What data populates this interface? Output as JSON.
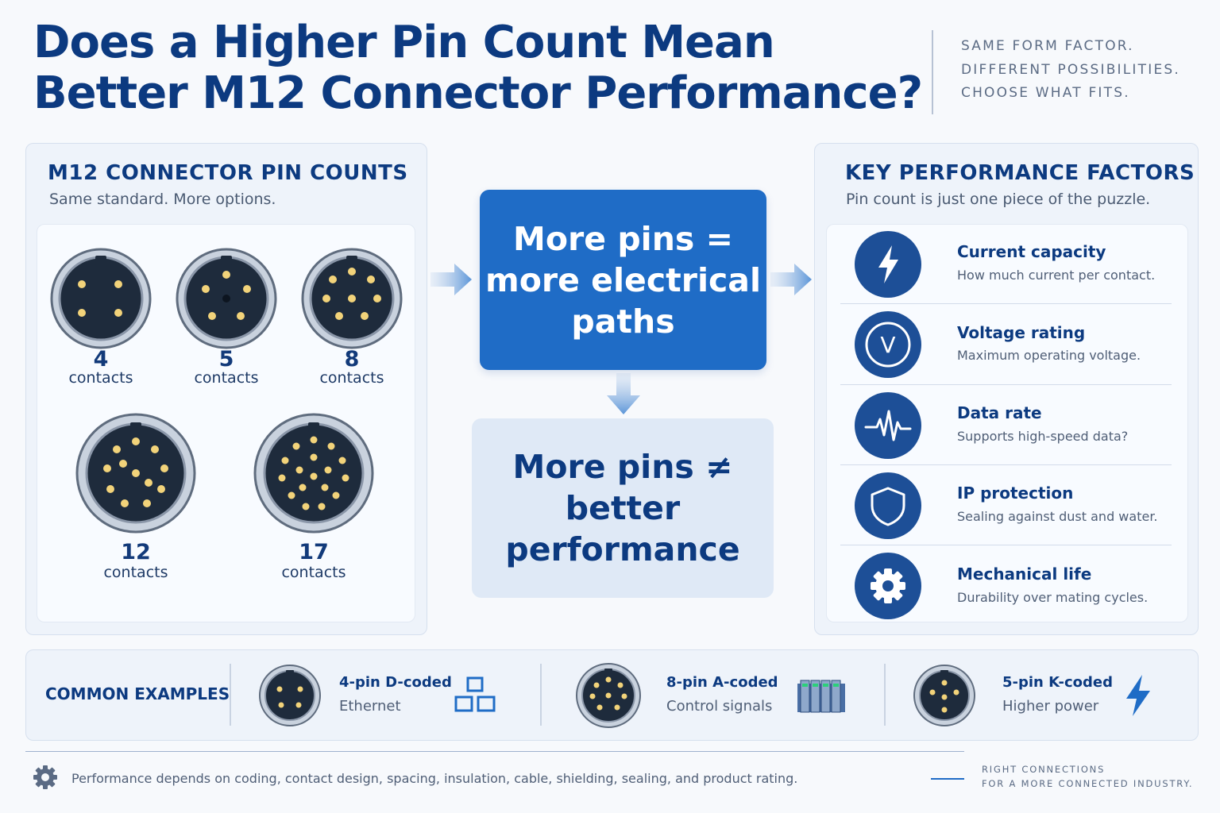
{
  "header": {
    "title_line1": "Does a Higher Pin Count Mean",
    "title_line2": "Better M12 Connector Performance?",
    "tagline": [
      "SAME FORM FACTOR.",
      "DIFFERENT POSSIBILITIES.",
      "CHOOSE WHAT FITS."
    ]
  },
  "pin_counts": {
    "title": "M12 CONNECTOR PIN COUNTS",
    "subtitle": "Same standard. More options.",
    "connectors": [
      {
        "count": "4",
        "label": "contacts"
      },
      {
        "count": "5",
        "label": "contacts"
      },
      {
        "count": "8",
        "label": "contacts"
      },
      {
        "count": "12",
        "label": "contacts"
      },
      {
        "count": "17",
        "label": "contacts"
      }
    ]
  },
  "center": {
    "claim_lines": [
      "More pins =",
      "more electrical",
      "paths"
    ],
    "conclusion_lines": [
      "More pins ≠",
      "better",
      "performance"
    ]
  },
  "factors": {
    "title": "KEY PERFORMANCE FACTORS",
    "subtitle": "Pin count is just one piece of the puzzle.",
    "items": [
      {
        "icon": "lightning-icon",
        "title": "Current capacity",
        "desc": "How much current per contact."
      },
      {
        "icon": "voltage-icon",
        "glyph": "V",
        "title": "Voltage rating",
        "desc": "Maximum operating voltage."
      },
      {
        "icon": "waveform-icon",
        "title": "Data rate",
        "desc": "Supports high-speed data?"
      },
      {
        "icon": "shield-icon",
        "title": "IP protection",
        "desc": "Sealing against dust and water."
      },
      {
        "icon": "gear-icon",
        "title": "Mechanical life",
        "desc": "Durability over mating cycles."
      }
    ]
  },
  "examples": {
    "label": "COMMON EXAMPLES",
    "items": [
      {
        "name": "4-pin D-coded",
        "desc": "Ethernet",
        "icon": "network-icon"
      },
      {
        "name": "8-pin A-coded",
        "desc": "Control signals",
        "icon": "control-module-icon"
      },
      {
        "name": "5-pin K-coded",
        "desc": "Higher power",
        "icon": "lightning-icon"
      }
    ]
  },
  "footer": {
    "note": "Performance depends on coding, contact design, spacing, insulation, cable, shielding, sealing, and product rating.",
    "brand": [
      "RIGHT CONNECTIONS",
      "FOR A MORE CONNECTED INDUSTRY."
    ]
  },
  "colors": {
    "primary": "#0c3a80",
    "accent_blue": "#1f6cc6",
    "icon_blue": "#1d4f97",
    "pin_gold": "#f2d37a",
    "connector_face": "#1e2b3c"
  }
}
